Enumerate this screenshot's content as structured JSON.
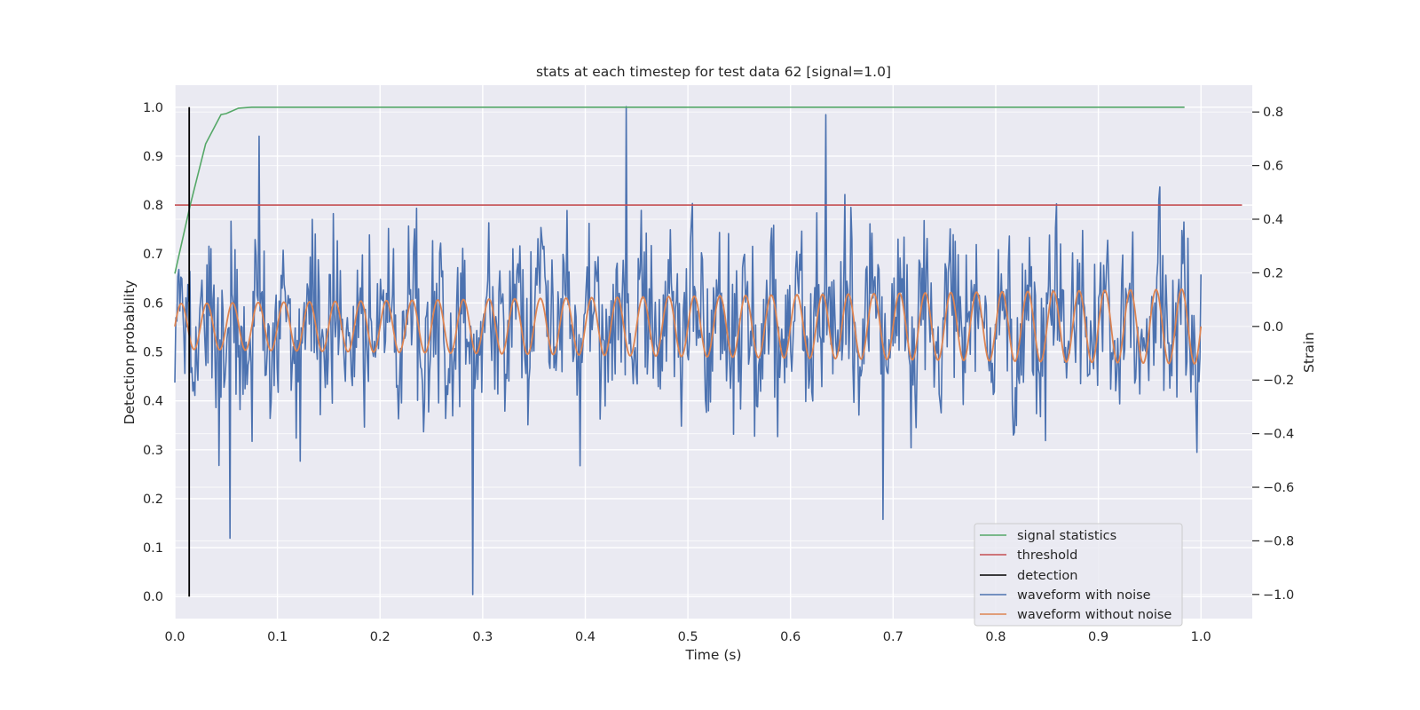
{
  "chart_data": {
    "type": "line",
    "title": "stats at each timestep for test data 62 [signal=1.0]",
    "xlabel": "Time (s)",
    "ylabel_left": "Detection probability",
    "ylabel_right": "Strain",
    "xlim": [
      0.0,
      1.05
    ],
    "ylim_left": [
      -0.045,
      1.045
    ],
    "ylim_right": [
      -1.09,
      0.9
    ],
    "x_ticks": [
      "0.0",
      "0.1",
      "0.2",
      "0.3",
      "0.4",
      "0.5",
      "0.6",
      "0.7",
      "0.8",
      "0.9",
      "1.0"
    ],
    "y_left_ticks": [
      "0.0",
      "0.1",
      "0.2",
      "0.3",
      "0.4",
      "0.5",
      "0.6",
      "0.7",
      "0.8",
      "0.9",
      "1.0"
    ],
    "y_right_ticks": [
      "−1.0",
      "−0.8",
      "−0.6",
      "−0.4",
      "−0.2",
      "0.0",
      "0.2",
      "0.4",
      "0.6",
      "0.8"
    ],
    "grid": true,
    "legend_position": "lower right",
    "series": [
      {
        "name": "signal statistics",
        "axis": "left",
        "color": "#55a868",
        "x": [
          0.0,
          0.015,
          0.03,
          0.045,
          0.05,
          0.062,
          0.075,
          0.09,
          0.2,
          0.4,
          0.6,
          0.8,
          0.984
        ],
        "y": [
          0.66,
          0.8,
          0.925,
          0.985,
          0.987,
          0.998,
          1.0,
          1.0,
          1.0,
          1.0,
          1.0,
          1.0,
          1.0
        ]
      },
      {
        "name": "threshold",
        "axis": "left",
        "color": "#c44e52",
        "x": [
          0.0,
          1.04
        ],
        "y": [
          0.8,
          0.8
        ]
      },
      {
        "name": "detection",
        "axis": "left",
        "color": "#000000",
        "x": [
          0.014,
          0.014
        ],
        "y": [
          0.0,
          1.0
        ]
      },
      {
        "name": "waveform with noise",
        "axis": "right",
        "color": "#4c72b0",
        "samples": 1024,
        "x_range": [
          0.0,
          1.0
        ],
        "y_range": [
          -1.0,
          0.82
        ],
        "extrema": [
          {
            "x": 0.29,
            "y": -1.0
          },
          {
            "x": 0.44,
            "y": 0.82
          },
          {
            "x": 0.054,
            "y": -0.79
          },
          {
            "x": 0.634,
            "y": 0.79
          },
          {
            "x": 0.69,
            "y": -0.72
          },
          {
            "x": 0.0826,
            "y": 0.71
          }
        ]
      },
      {
        "name": "waveform without noise",
        "axis": "right",
        "color": "#dd8452",
        "x_range": [
          0.0,
          1.0
        ],
        "cycles": 40,
        "amplitude_start": 0.085,
        "amplitude_end": 0.14
      }
    ]
  }
}
